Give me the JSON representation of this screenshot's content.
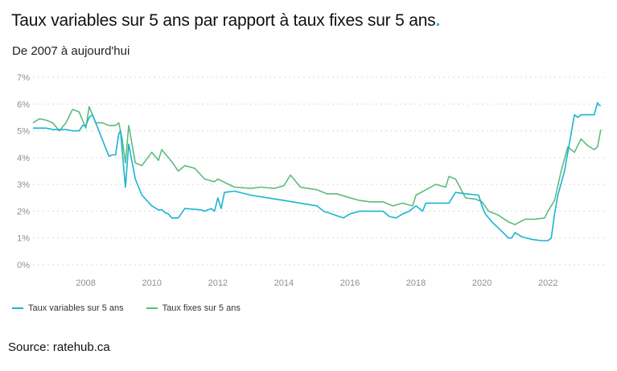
{
  "header": {
    "title": "Taux variables sur 5 ans par rapport à taux fixes sur 5 ans",
    "title_dot": ".",
    "subtitle": "De 2007 à aujourd'hui"
  },
  "source": "Source: ratehub.ca",
  "colors": {
    "variable": "#19b4d2",
    "fixed": "#5dbb7f",
    "dot": "#19b4d2"
  },
  "chart_data": {
    "type": "line",
    "title": "Taux variables sur 5 ans par rapport à taux fixes sur 5 ans",
    "subtitle": "De 2007 à aujourd'hui",
    "xlabel": "",
    "ylabel": "",
    "xlim": [
      2006.4,
      2023.7
    ],
    "ylim": [
      0,
      7
    ],
    "grid": true,
    "legend_position": "bottom-left",
    "y_ticks": [
      "0%",
      "1%",
      "2%",
      "3%",
      "4%",
      "5%",
      "6%",
      "7%"
    ],
    "x_ticks": [
      "2008",
      "2010",
      "2012",
      "2014",
      "2016",
      "2018",
      "2020",
      "2022"
    ],
    "series": [
      {
        "name": "Taux variables sur 5 ans",
        "x": [
          2006.4,
          2006.8,
          2007.0,
          2007.4,
          2007.6,
          2007.8,
          2007.9,
          2008.0,
          2008.1,
          2008.2,
          2008.3,
          2008.7,
          2008.8,
          2008.9,
          2009.0,
          2009.05,
          2009.1,
          2009.2,
          2009.3,
          2009.5,
          2009.7,
          2010.0,
          2010.2,
          2010.3,
          2010.4,
          2010.5,
          2010.6,
          2010.8,
          2011.0,
          2011.5,
          2011.6,
          2011.8,
          2011.9,
          2012.0,
          2012.1,
          2012.2,
          2012.5,
          2013.0,
          2013.5,
          2014.0,
          2014.5,
          2015.0,
          2015.2,
          2015.8,
          2016.0,
          2016.3,
          2016.5,
          2017.0,
          2017.2,
          2017.4,
          2017.6,
          2017.8,
          2018.0,
          2018.2,
          2018.3,
          2018.6,
          2018.8,
          2019.0,
          2019.2,
          2019.5,
          2019.9,
          2020.0,
          2020.1,
          2020.3,
          2020.6,
          2020.8,
          2020.9,
          2021.0,
          2021.2,
          2021.5,
          2021.8,
          2022.0,
          2022.1,
          2022.2,
          2022.3,
          2022.5,
          2022.8,
          2022.9,
          2023.0,
          2023.2,
          2023.4,
          2023.5,
          2023.55,
          2023.6
        ],
        "values": [
          5.1,
          5.1,
          5.05,
          5.05,
          5.0,
          5.0,
          5.2,
          5.2,
          5.5,
          5.6,
          5.3,
          4.05,
          4.1,
          4.1,
          4.9,
          5.0,
          4.3,
          2.9,
          4.5,
          3.2,
          2.6,
          2.2,
          2.05,
          2.05,
          1.95,
          1.9,
          1.75,
          1.75,
          2.1,
          2.05,
          2.0,
          2.1,
          2.0,
          2.5,
          2.1,
          2.7,
          2.75,
          2.6,
          2.5,
          2.4,
          2.3,
          2.2,
          2.0,
          1.75,
          1.9,
          2.0,
          2.0,
          2.0,
          1.8,
          1.75,
          1.9,
          2.0,
          2.2,
          2.0,
          2.3,
          2.3,
          2.3,
          2.3,
          2.7,
          2.65,
          2.6,
          2.2,
          1.9,
          1.6,
          1.25,
          1.0,
          1.0,
          1.2,
          1.05,
          0.95,
          0.9,
          0.9,
          1.0,
          1.9,
          2.6,
          3.5,
          5.6,
          5.5,
          5.6,
          5.6,
          5.6,
          6.05,
          5.95,
          5.95
        ]
      },
      {
        "name": "Taux fixes sur 5 ans",
        "x": [
          2006.4,
          2006.6,
          2006.8,
          2007.0,
          2007.2,
          2007.4,
          2007.6,
          2007.8,
          2008.0,
          2008.1,
          2008.3,
          2008.5,
          2008.7,
          2008.9,
          2009.0,
          2009.1,
          2009.2,
          2009.3,
          2009.5,
          2009.7,
          2010.0,
          2010.2,
          2010.3,
          2010.4,
          2010.6,
          2010.8,
          2011.0,
          2011.3,
          2011.6,
          2011.9,
          2012.0,
          2012.5,
          2013.0,
          2013.3,
          2013.7,
          2014.0,
          2014.2,
          2014.5,
          2015.0,
          2015.3,
          2015.6,
          2016.0,
          2016.3,
          2016.6,
          2017.0,
          2017.3,
          2017.6,
          2017.9,
          2018.0,
          2018.3,
          2018.6,
          2018.9,
          2019.0,
          2019.2,
          2019.5,
          2019.8,
          2020.0,
          2020.2,
          2020.5,
          2020.8,
          2021.0,
          2021.3,
          2021.6,
          2021.9,
          2022.0,
          2022.2,
          2022.4,
          2022.6,
          2022.8,
          2023.0,
          2023.2,
          2023.4,
          2023.5,
          2023.6
        ],
        "values": [
          5.3,
          5.45,
          5.4,
          5.3,
          5.0,
          5.3,
          5.8,
          5.7,
          5.1,
          5.9,
          5.3,
          5.3,
          5.2,
          5.2,
          5.3,
          4.7,
          3.8,
          5.2,
          3.8,
          3.7,
          4.2,
          3.9,
          4.3,
          4.15,
          3.85,
          3.5,
          3.7,
          3.6,
          3.2,
          3.1,
          3.2,
          2.9,
          2.85,
          2.9,
          2.85,
          2.95,
          3.35,
          2.9,
          2.8,
          2.65,
          2.65,
          2.5,
          2.4,
          2.35,
          2.35,
          2.2,
          2.3,
          2.2,
          2.6,
          2.8,
          3.0,
          2.9,
          3.3,
          3.2,
          2.5,
          2.45,
          2.35,
          2.0,
          1.85,
          1.6,
          1.5,
          1.7,
          1.7,
          1.75,
          2.0,
          2.4,
          3.5,
          4.4,
          4.2,
          4.7,
          4.45,
          4.3,
          4.4,
          5.05
        ]
      }
    ]
  }
}
